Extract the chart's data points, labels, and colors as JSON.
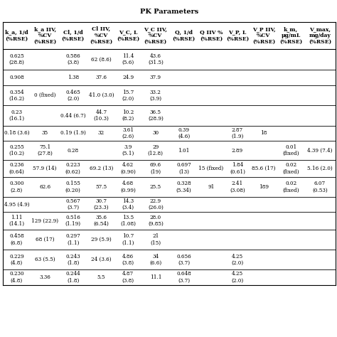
{
  "title": "PK Parameters",
  "columns": [
    "k_a, 1/d\n(%RSE)",
    "k_a IIV,\n%CV\n(%RSE)",
    "Cl, 1/d\n(%RSE)",
    "Cl IIV,\n%CV\n(%RSE)",
    "V_C, L\n(%RSE)",
    "V_C IIV,\n%CV\n(%RSE)",
    "Q, 1/d\n(%RSE)",
    "Q IIV %\n(%RSE)",
    "V_P, L\n(%RSE)",
    "V_P IIV,\n%CV\n(%RSE)",
    "k_m,\nμg/mL\n(%RSE)",
    "V_max,\nmg/day\n(%RSE)"
  ],
  "rows": [
    [
      "0.625\n(28.8)",
      "",
      "0.586\n(3.8)",
      "62 (8.6)",
      "11.4\n(5.6)",
      "43.6\n(31.5)",
      "",
      "",
      "",
      "",
      "",
      ""
    ],
    [
      "0.908",
      "",
      "1.38",
      "37.6",
      "24.9",
      "37.9",
      "",
      "",
      "",
      "",
      "",
      ""
    ],
    [
      "0.354\n(16.2)",
      "0 (fixed)",
      "0.465\n(2.0)",
      "41.0 (3.0)",
      "15.7\n(2.0)",
      "33.2\n(3.9)",
      "",
      "",
      "",
      "",
      "",
      ""
    ],
    [
      "0.23\n(16.1)",
      "",
      "0.44 (6.7)",
      "44.7\n(10.3)",
      "10.2\n(8.2)",
      "36.5\n(28.9)",
      "",
      "",
      "",
      "",
      "",
      ""
    ],
    [
      "0.18 (3.6)",
      "35",
      "0.19 (1.9)",
      "32",
      "3.61\n(2.6)",
      "30",
      "0.39\n(4.6)",
      "",
      "2.87\n(1.9)",
      "18",
      "",
      ""
    ],
    [
      "0.255\n(10.2)",
      "75.1\n(27.8)",
      "0.28",
      "",
      "3.9\n(5.1)",
      "29\n(12.8)",
      "1.01",
      "",
      "2.89",
      "",
      "0.01\n(fixed)",
      "4.39 (7.4)"
    ],
    [
      "0.236\n(0.64)",
      "57.9 (14)",
      "0.223\n(0.62)",
      "69.2 (13)",
      "4.62\n(0.90)",
      "69.6\n(19)",
      "0.697\n(13)",
      "15 (fixed)",
      "1.84\n(0.61)",
      "85.6 (17)",
      "0.02\n(fixed)",
      "5.16 (2.0)"
    ],
    [
      "0.300\n(2.8)",
      "62.6",
      "0.155\n(0.20)",
      "57.5",
      "4.68\n(0.99)",
      "25.5",
      "0.328\n(5.34)",
      "91",
      "2.41\n(3.08)",
      "189",
      "0.02\n(fixed)",
      "6.07\n(0.53)"
    ],
    [
      "4.95 (4.9)",
      "",
      "0.567\n(3.7)",
      "30.7\n(23.3)",
      "14.3\n(3.4)",
      "22.9\n(26.0)",
      "",
      "",
      "",
      "",
      "",
      ""
    ],
    [
      "1.11\n(14.1)",
      "129 (22.9)",
      "0.516\n(1.19)",
      "35.6\n(6.54)",
      "13.5\n(1.08)",
      "28.0\n(9.85)",
      "",
      "",
      "",
      "",
      "",
      ""
    ],
    [
      "0.458\n(6.8)",
      "68 (17)",
      "0.297\n(1.1)",
      "29 (5.9)",
      "10.7\n(1.1)",
      "21\n(15)",
      "",
      "",
      "",
      "",
      "",
      ""
    ],
    [
      "0.229\n(4.8)",
      "63 (5.5)",
      "0.243\n(1.8)",
      "24 (3.6)",
      "4.86\n(3.8)",
      "34\n(6.6)",
      "0.656\n(3.7)",
      "",
      "4.25\n(2.0)",
      "",
      "",
      ""
    ],
    [
      "0.230\n(4.8)",
      "3.36",
      "0.244\n(1.8)",
      "5.5",
      "4.87\n(3.8)",
      "11.1",
      "0.648\n(3.7)",
      "",
      "4.25\n(2.0)",
      "",
      "",
      ""
    ]
  ],
  "title_fontsize": 7,
  "header_fontsize": 5.5,
  "cell_fontsize": 5.2
}
